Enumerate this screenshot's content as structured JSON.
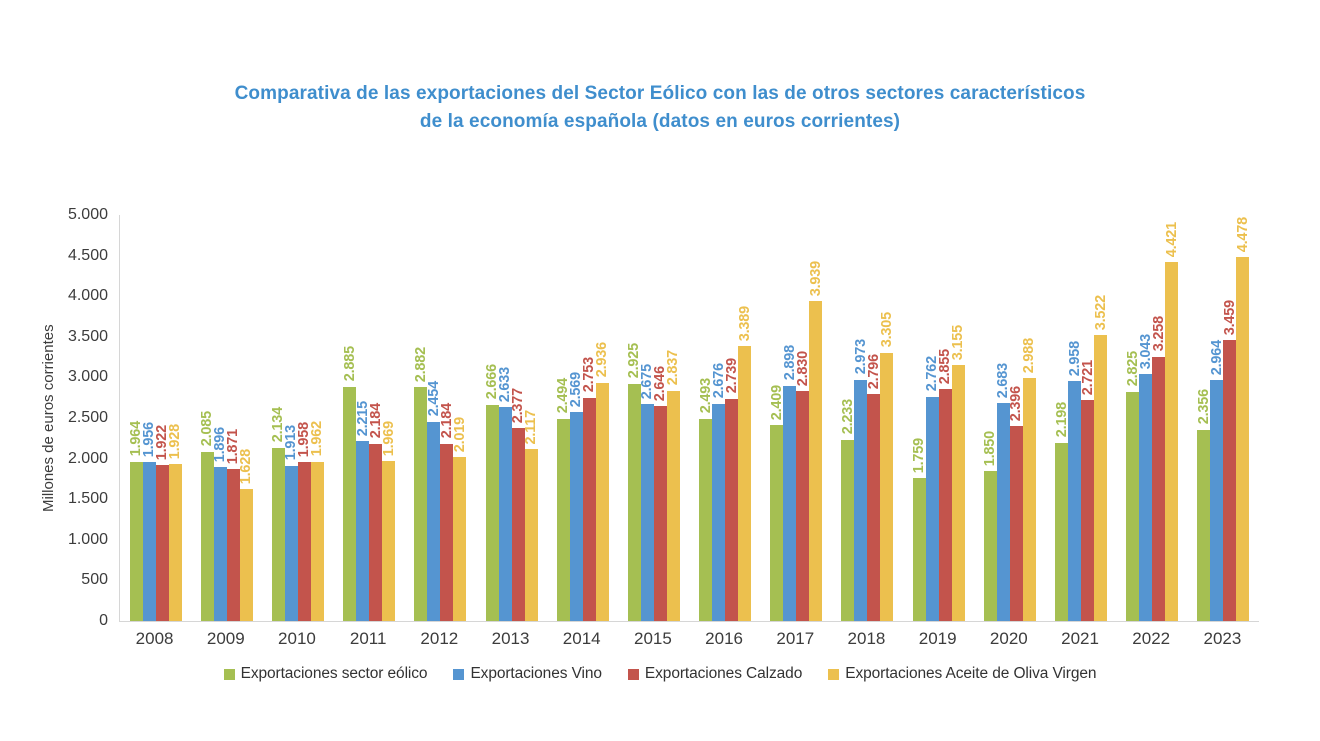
{
  "title": {
    "line1": "Comparativa de las exportaciones del Sector Eólico con las de otros sectores característicos",
    "line2": "de la economía española (datos en euros corrientes)",
    "color": "#3f8ecd"
  },
  "chart_data": {
    "type": "bar",
    "title": "Comparativa de las exportaciones del Sector Eólico con las de otros sectores característicos de la economía española (datos en euros corrientes)",
    "xlabel": "",
    "ylabel": "Millones de euros corrientes",
    "ylim": [
      0,
      5000
    ],
    "ytick_step": 500,
    "ytick_labels": [
      "0",
      "500",
      "1.000",
      "1.500",
      "2.000",
      "2.500",
      "3.000",
      "3.500",
      "4.000",
      "4.500",
      "5.000"
    ],
    "grid": false,
    "legend_position": "bottom",
    "categories": [
      "2008",
      "2009",
      "2010",
      "2011",
      "2012",
      "2013",
      "2014",
      "2015",
      "2016",
      "2017",
      "2018",
      "2019",
      "2020",
      "2021",
      "2022",
      "2023"
    ],
    "series": [
      {
        "name": "Exportaciones sector eólico",
        "color": "#a5bf52",
        "values": [
          1964,
          2085,
          2134,
          2885,
          2882,
          2666,
          2494,
          2925,
          2493,
          2409,
          2233,
          1759,
          1850,
          2198,
          2825,
          2356
        ]
      },
      {
        "name": "Exportaciones Vino",
        "color": "#5595d1",
        "values": [
          1956,
          1896,
          1913,
          2215,
          2454,
          2633,
          2569,
          2675,
          2676,
          2898,
          2973,
          2762,
          2683,
          2958,
          3043,
          2964
        ]
      },
      {
        "name": "Exportaciones Calzado",
        "color": "#c3544c",
        "values": [
          1922,
          1871,
          1958,
          2184,
          2184,
          2377,
          2753,
          2646,
          2739,
          2830,
          2796,
          2855,
          2396,
          2721,
          3258,
          3459
        ]
      },
      {
        "name": "Exportaciones Aceite de Oliva Virgen",
        "color": "#ecc04e",
        "values": [
          1928,
          1628,
          1962,
          1969,
          2019,
          2117,
          2936,
          2837,
          3389,
          3939,
          3305,
          3155,
          2988,
          3522,
          4421,
          4478
        ]
      }
    ]
  }
}
